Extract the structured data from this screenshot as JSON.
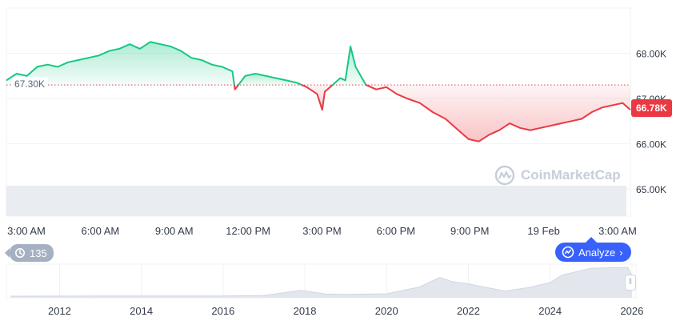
{
  "colors": {
    "up": "#16c784",
    "down": "#ea3943",
    "grid": "#eff2f5",
    "text": "#58667e",
    "accent": "#3861fb"
  },
  "chart_data": [
    {
      "type": "line",
      "reference_price": 67300,
      "reference_label": "67.30K",
      "last_price_label": "66.78K",
      "ylim": [
        64400,
        69000
      ],
      "y_ticks": [
        {
          "value": 65000,
          "label": "65.00K"
        },
        {
          "value": 66000,
          "label": "66.00K"
        },
        {
          "value": 67000,
          "label": "67.00K"
        },
        {
          "value": 68000,
          "label": "68.00K"
        }
      ],
      "x_ticks": [
        "3:00 AM",
        "6:00 AM",
        "9:00 AM",
        "12:00 PM",
        "3:00 PM",
        "6:00 PM",
        "9:00 PM",
        "19 Feb",
        "3:00 AM"
      ],
      "xlim_hours": [
        3,
        27.3
      ],
      "x_hours": [
        3.0,
        3.4,
        3.8,
        4.2,
        4.6,
        5.0,
        5.4,
        5.8,
        6.2,
        6.6,
        7.0,
        7.4,
        7.8,
        8.2,
        8.6,
        9.0,
        9.4,
        9.8,
        10.2,
        10.6,
        11.0,
        11.4,
        11.8,
        11.9,
        12.3,
        12.7,
        13.1,
        13.5,
        13.9,
        14.3,
        14.7,
        15.1,
        15.3,
        15.4,
        15.7,
        16.0,
        16.2,
        16.4,
        16.6,
        17.0,
        17.4,
        17.8,
        18.2,
        18.6,
        19.1,
        19.6,
        20.1,
        20.6,
        21.0,
        21.4,
        21.8,
        22.2,
        22.6,
        23.0,
        23.4,
        23.8,
        24.2,
        24.6,
        25.0,
        25.4,
        25.8,
        26.2,
        26.6,
        27.0,
        27.3
      ],
      "price": [
        67400,
        67550,
        67500,
        67700,
        67750,
        67700,
        67800,
        67850,
        67900,
        67950,
        68050,
        68100,
        68200,
        68100,
        68250,
        68200,
        68150,
        68050,
        67900,
        67850,
        67750,
        67700,
        67600,
        67200,
        67500,
        67550,
        67500,
        67450,
        67400,
        67350,
        67250,
        67100,
        66750,
        67150,
        67300,
        67450,
        67400,
        68150,
        67700,
        67300,
        67200,
        67250,
        67100,
        67000,
        66900,
        66700,
        66550,
        66300,
        66100,
        66050,
        66200,
        66300,
        66450,
        66350,
        66300,
        66350,
        66400,
        66450,
        66500,
        66550,
        66700,
        66800,
        66850,
        66900,
        66750
      ],
      "context_x_years": [
        2010.8,
        2012,
        2013,
        2014,
        2015,
        2016,
        2017,
        2017.9,
        2018.5,
        2019,
        2020,
        2020.8,
        2021.3,
        2021.6,
        2022,
        2022.9,
        2023.5,
        2024,
        2024.3,
        2025,
        2025.9,
        2026
      ],
      "context_price": [
        0.1,
        0.2,
        0.5,
        0.8,
        0.4,
        0.5,
        2.5,
        19,
        7,
        6,
        8,
        30,
        62,
        48,
        40,
        17,
        29,
        45,
        70,
        92,
        95,
        68
      ],
      "context_x_ticks": [
        "2012",
        "2014",
        "2016",
        "2018",
        "2020",
        "2022",
        "2024",
        "2026"
      ],
      "context_xlim_years": [
        2010.7,
        2026.1
      ]
    }
  ],
  "history_badge": {
    "icon": "history-icon",
    "count": "135"
  },
  "analyze_button": {
    "label": "Analyze",
    "icon": "analyze-icon"
  },
  "watermark": {
    "label": "CoinMarketCap",
    "icon": "coinmarketcap-logo-icon"
  }
}
